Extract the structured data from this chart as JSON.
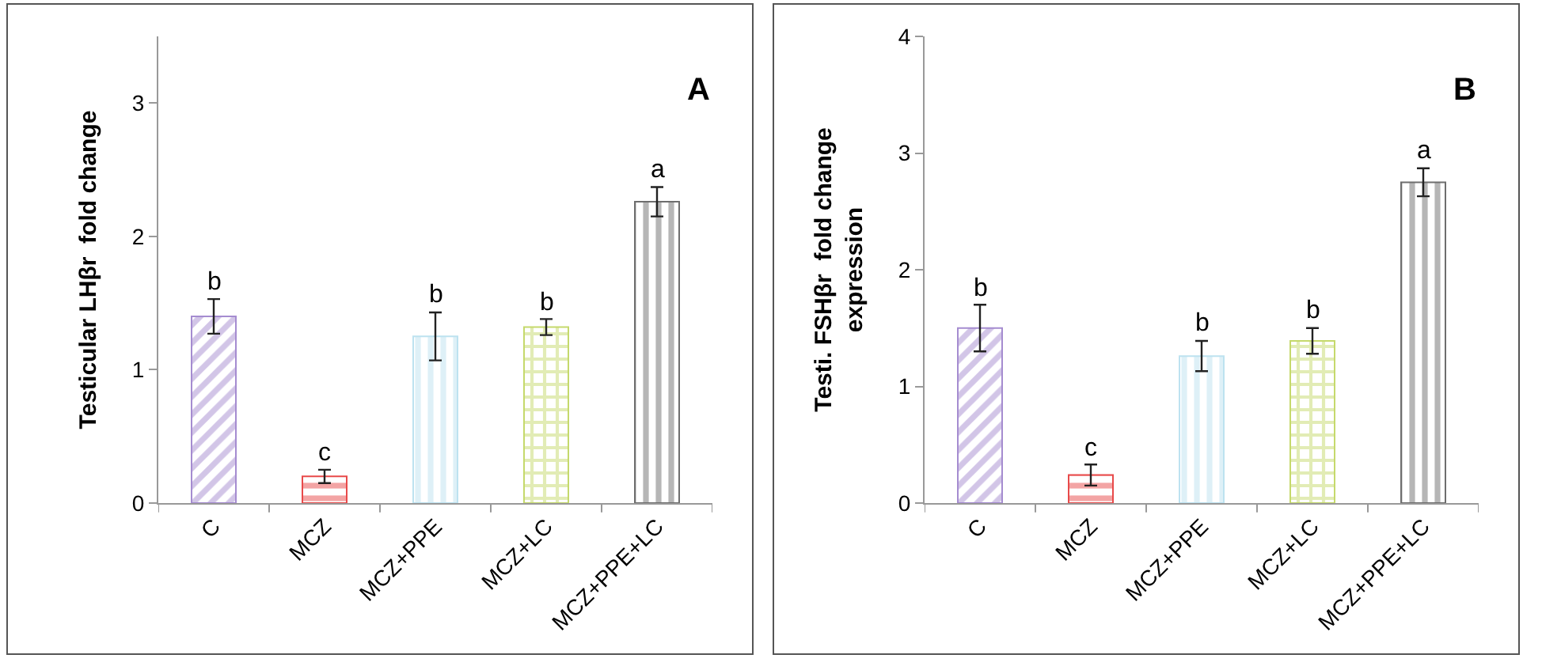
{
  "chart_data": [
    {
      "type": "bar",
      "ylabel": "Testicular LHβr  fold change",
      "categories": [
        "C",
        "MCZ",
        "MCZ+PPE",
        "MCZ+LC",
        "MCZ+PPE+LC"
      ],
      "values": [
        1.4,
        0.2,
        1.25,
        1.32,
        2.26
      ],
      "errors": [
        0.13,
        0.05,
        0.18,
        0.06,
        0.11
      ],
      "colors": [
        "#a58cd0",
        "#e84a4a",
        "#bde2f0",
        "#c5d96c",
        "#6e6e6e"
      ],
      "ylim": [
        0,
        3.5
      ],
      "yticks": [
        0,
        1,
        2,
        3
      ],
      "grid": false,
      "legend": false,
      "annotations": [
        "A",
        {
          "text": "b",
          "x": "C",
          "y": 1.53
        },
        {
          "text": "c",
          "x": "MCZ",
          "y": 0.25
        },
        {
          "text": "b",
          "x": "MCZ+PPE",
          "y": 1.43
        },
        {
          "text": "b",
          "x": "MCZ+LC",
          "y": 1.38
        },
        {
          "text": "a",
          "x": "MCZ+PPE+LC",
          "y": 2.37
        }
      ]
    },
    {
      "type": "bar",
      "ylabel": "Testi. FSHβr  fold change\nexpression",
      "categories": [
        "C",
        "MCZ",
        "MCZ+PPE",
        "MCZ+LC",
        "MCZ+PPE+LC"
      ],
      "values": [
        1.5,
        0.24,
        1.26,
        1.39,
        2.75
      ],
      "errors": [
        0.2,
        0.09,
        0.13,
        0.11,
        0.12
      ],
      "colors": [
        "#a58cd0",
        "#e84a4a",
        "#bde2f0",
        "#c5d96c",
        "#6e6e6e"
      ],
      "ylim": [
        0,
        4
      ],
      "yticks": [
        0,
        1,
        2,
        3,
        4
      ],
      "grid": false,
      "legend": false,
      "annotations": [
        "B",
        {
          "text": "b",
          "x": "C",
          "y": 1.7
        },
        {
          "text": "c",
          "x": "MCZ",
          "y": 0.33
        },
        {
          "text": "b",
          "x": "MCZ+PPE",
          "y": 1.39
        },
        {
          "text": "b",
          "x": "MCZ+LC",
          "y": 1.5
        },
        {
          "text": "a",
          "x": "MCZ+PPE+LC",
          "y": 2.87
        }
      ]
    }
  ]
}
